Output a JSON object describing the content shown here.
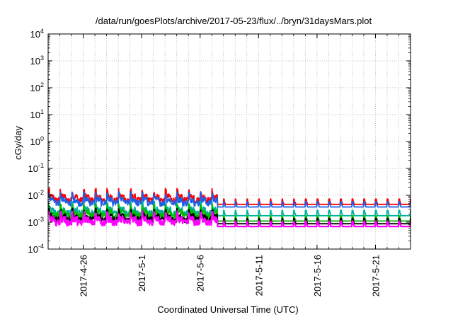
{
  "chart_data": {
    "type": "line",
    "title": "/data/run/goesPlots/archive/2017-05-23/flux/../bryn/31daysMars.plot",
    "xlabel": "Coordinated Universal Time (UTC)",
    "ylabel": "cGy/day",
    "y_scale": "log",
    "ylim": [
      0.0001,
      10000
    ],
    "xlim": [
      "2017-04-23",
      "2017-05-24"
    ],
    "x_ticks": [
      {
        "date": "2017-04-26",
        "label": "2017-4-26"
      },
      {
        "date": "2017-05-01",
        "label": "2017-5-1"
      },
      {
        "date": "2017-05-06",
        "label": "2017-5-6"
      },
      {
        "date": "2017-05-11",
        "label": "2017-5-11"
      },
      {
        "date": "2017-05-16",
        "label": "2017-5-16"
      },
      {
        "date": "2017-05-21",
        "label": "2017-5-21"
      }
    ],
    "y_ticks": [
      {
        "value": 0.0001,
        "base": "10",
        "exp": "-4"
      },
      {
        "value": 0.001,
        "base": "10",
        "exp": "-3"
      },
      {
        "value": 0.01,
        "base": "10",
        "exp": "-2"
      },
      {
        "value": 0.1,
        "base": "10",
        "exp": "-1"
      },
      {
        "value": 1,
        "base": "10",
        "exp": "0"
      },
      {
        "value": 10,
        "base": "10",
        "exp": "1"
      },
      {
        "value": 100,
        "base": "10",
        "exp": "2"
      },
      {
        "value": 1000,
        "base": "10",
        "exp": "3"
      },
      {
        "value": 10000,
        "base": "10",
        "exp": "4"
      }
    ],
    "grid": true,
    "legend": "none",
    "series_approx": [
      {
        "color": "#ff0000",
        "level_before": 0.009,
        "level_after": 0.005
      },
      {
        "color": "#1f5fe6",
        "level_before": 0.007,
        "level_after": 0.004
      },
      {
        "color": "#00b0a0",
        "level_before": 0.003,
        "level_after": 0.0019
      },
      {
        "color": "#00bb00",
        "level_before": 0.0024,
        "level_after": 0.0012
      },
      {
        "color": "#000000",
        "level_before": 0.0017,
        "level_after": 0.00095
      },
      {
        "color": "#ff00ff",
        "level_before": 0.0013,
        "level_after": 0.00075
      }
    ],
    "step_date": "2017-05-07T12:00",
    "period_days": 1
  }
}
